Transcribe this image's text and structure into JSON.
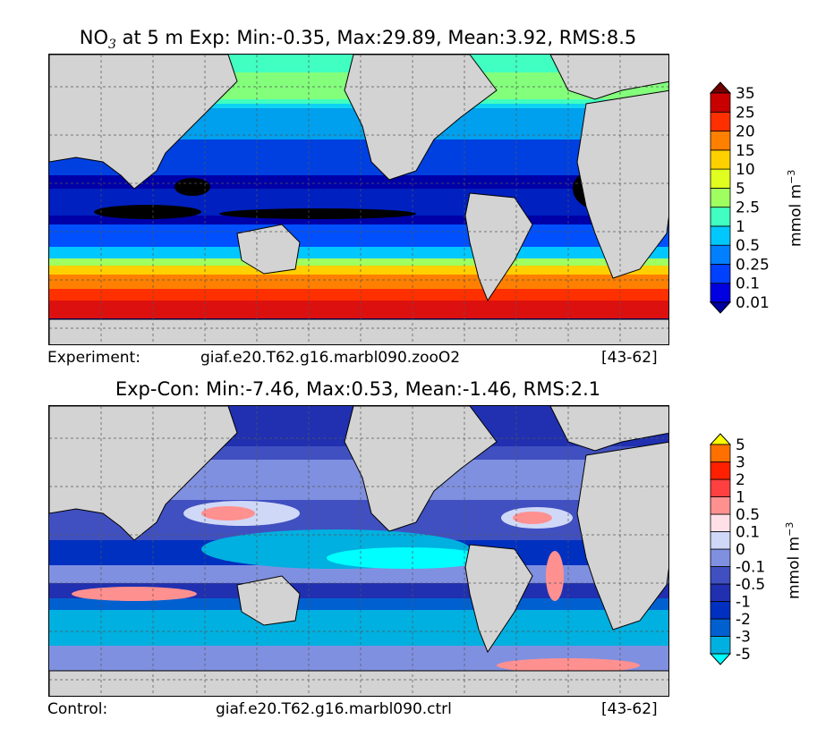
{
  "panels": [
    {
      "id": "experiment",
      "title_prefix": "NO",
      "title_sub": "3",
      "title_rest": " at 5 m Exp: Min:-0.35, Max:29.89, Mean:3.92, RMS:8.5",
      "caption_left": "Experiment:",
      "caption_case": "giaf.e20.T62.g16.marbl090.zooO2",
      "caption_years": "[43-62]",
      "unit": "mmol m",
      "unit_exp": "−3",
      "colorbar": {
        "labels": [
          "0.01",
          "0.1",
          "0.25",
          "0.5",
          "1",
          "2.5",
          "5",
          "10",
          "15",
          "20",
          "25",
          "35"
        ],
        "colors": [
          "#0000a0",
          "#0000e0",
          "#0040ff",
          "#0080ff",
          "#00c8ff",
          "#40ffc0",
          "#a0ff60",
          "#e0ff20",
          "#ffd000",
          "#ff8000",
          "#ff3000",
          "#c80000",
          "#700000"
        ]
      }
    },
    {
      "id": "difference",
      "title_prefix": "",
      "title_sub": "",
      "title_rest": "Exp-Con: Min:-7.46, Max:0.53, Mean:-1.46, RMS:2.1",
      "caption_left": "Control:",
      "caption_case": "giaf.e20.T62.g16.marbl090.ctrl",
      "caption_years": "[43-62]",
      "unit": "mmol m",
      "unit_exp": "−3",
      "colorbar": {
        "labels": [
          "-5",
          "-3",
          "-2",
          "-1",
          "-0.5",
          "-0.1",
          "0",
          "0.1",
          "0.5",
          "1",
          "2",
          "3",
          "5"
        ],
        "colors": [
          "#00ffff",
          "#00b0e0",
          "#0060d0",
          "#0030c0",
          "#2030b0",
          "#4050c0",
          "#8090e0",
          "#d0d8f8",
          "#ffe0e8",
          "#ff9090",
          "#ff4040",
          "#ff2000",
          "#ff7000",
          "#ffff00"
        ]
      }
    }
  ]
}
